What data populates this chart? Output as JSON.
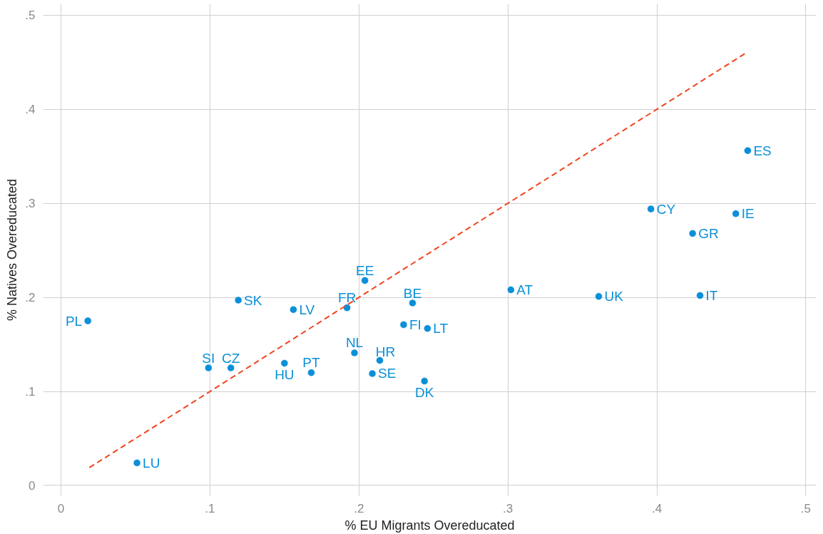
{
  "chart_data": {
    "type": "scatter",
    "xlabel": "% EU Migrants Overeducated",
    "ylabel": "% Natives Overeducated",
    "xlim": [
      -0.012,
      0.507
    ],
    "ylim": [
      -0.011,
      0.512
    ],
    "xticks": [
      0,
      {
        "value": 0.1,
        "label": ".1"
      },
      {
        "value": 0.2,
        "label": ".2"
      },
      {
        "value": 0.3,
        "label": ".3"
      },
      {
        "value": 0.4,
        "label": ".4"
      },
      {
        "value": 0.5,
        "label": ".5"
      }
    ],
    "yticks": [
      0,
      {
        "value": 0.1,
        "label": ".1"
      },
      {
        "value": 0.2,
        "label": ".2"
      },
      {
        "value": 0.3,
        "label": ".3"
      },
      {
        "value": 0.4,
        "label": ".4"
      },
      {
        "value": 0.5,
        "label": ".5"
      }
    ],
    "grid": true,
    "series": [
      {
        "marker": "circle",
        "color": "#0a8fd8",
        "x": [
          0.018,
          0.051,
          0.099,
          0.114,
          0.119,
          0.15,
          0.156,
          0.168,
          0.192,
          0.204,
          0.197,
          0.214,
          0.209,
          0.23,
          0.236,
          0.246,
          0.244,
          0.302,
          0.361,
          0.396,
          0.429,
          0.424,
          0.453,
          0.461
        ],
        "values": [
          0.175,
          0.024,
          0.125,
          0.125,
          0.197,
          0.13,
          0.187,
          0.12,
          0.189,
          0.218,
          0.141,
          0.133,
          0.119,
          0.171,
          0.194,
          0.167,
          0.111,
          0.208,
          0.201,
          0.294,
          0.202,
          0.268,
          0.289,
          0.356
        ],
        "value_labels": [
          "PL",
          "LU",
          "SI",
          "CZ",
          "SK",
          "HU",
          "LV",
          "PT",
          "FR",
          "EE",
          "NL",
          "HR",
          "SE",
          "FI",
          "BE",
          "LT",
          "DK",
          "AT",
          "UK",
          "CY",
          "IT",
          "GR",
          "IE",
          "ES"
        ]
      },
      {
        "type": "line",
        "color": "#f0451e",
        "line_style": "dashed",
        "x": [
          0.019,
          0.46
        ],
        "values": [
          0.019,
          0.46
        ]
      }
    ]
  }
}
